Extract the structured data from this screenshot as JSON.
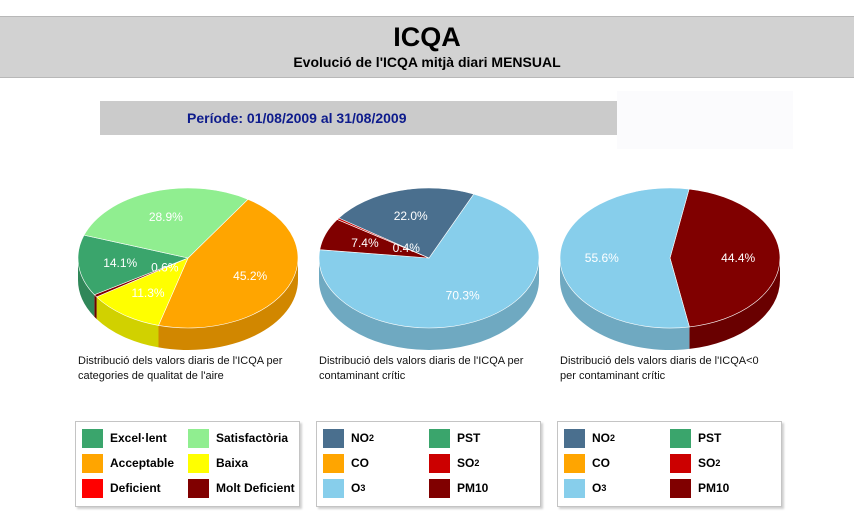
{
  "header": {
    "title": "ICQA",
    "subtitle": "Evolució de l'ICQA mitjà diari MENSUAL"
  },
  "period": "Període: 01/08/2009 al 31/08/2009",
  "colors": {
    "excel_lent": "#3aa56c",
    "satisfactoria": "#90ee90",
    "acceptable": "#ffa500",
    "baixa": "#ffff00",
    "deficient": "#ff0000",
    "molt_deficient": "#800000",
    "no2": "#4a6f8e",
    "pst": "#3aa56c",
    "co": "#ffa500",
    "so2": "#cc0000",
    "o3": "#87ceeb",
    "pm10": "#800000"
  },
  "chart_data": [
    {
      "type": "pie",
      "caption": "Distribució dels valors diaris de l'ICQA per categories de qualitat de l'aire",
      "slices": [
        {
          "label": "Acceptable",
          "value": 45.2,
          "text": "45.2%",
          "color": "#ffa500"
        },
        {
          "label": "Baixa",
          "value": 11.3,
          "text": "11.3%",
          "color": "#ffff00"
        },
        {
          "label": "Molt Deficient",
          "value": 0.6,
          "text": "0.6%",
          "color": "#800000"
        },
        {
          "label": "Excel·lent",
          "value": 14.1,
          "text": "14.1%",
          "color": "#3aa56c"
        },
        {
          "label": "Satisfactòria",
          "value": 28.9,
          "text": "28.9%",
          "color": "#90ee90"
        }
      ],
      "legend": [
        {
          "label": "Excel·lent",
          "sub": "",
          "color": "#3aa56c"
        },
        {
          "label": "Satisfactòria",
          "sub": "",
          "color": "#90ee90"
        },
        {
          "label": "Acceptable",
          "sub": "",
          "color": "#ffa500"
        },
        {
          "label": "Baixa",
          "sub": "",
          "color": "#ffff00"
        },
        {
          "label": "Deficient",
          "sub": "",
          "color": "#ff0000"
        },
        {
          "label": "Molt Deficient",
          "sub": "",
          "color": "#800000"
        }
      ]
    },
    {
      "type": "pie",
      "caption": "Distribució dels valors diaris de l'ICQA per contaminant crític",
      "slices": [
        {
          "label": "O3",
          "value": 70.3,
          "text": "70.3%",
          "color": "#87ceeb"
        },
        {
          "label": "PM10",
          "value": 7.4,
          "text": "7.4%",
          "color": "#800000"
        },
        {
          "label": "SO2",
          "value": 0.4,
          "text": "0.4%",
          "color": "#cc0000"
        },
        {
          "label": "NO2",
          "value": 22.0,
          "text": "22.0%",
          "color": "#4a6f8e"
        }
      ],
      "legend": [
        {
          "label": "NO",
          "sub": "2",
          "color": "#4a6f8e"
        },
        {
          "label": "PST",
          "sub": "",
          "color": "#3aa56c"
        },
        {
          "label": "CO",
          "sub": "",
          "color": "#ffa500"
        },
        {
          "label": "SO",
          "sub": "2",
          "color": "#cc0000"
        },
        {
          "label": "O",
          "sub": "3",
          "color": "#87ceeb"
        },
        {
          "label": "PM10",
          "sub": "",
          "color": "#800000"
        }
      ]
    },
    {
      "type": "pie",
      "caption": "Distribució dels valors diaris de l'ICQA<0 per contaminant crític",
      "slices": [
        {
          "label": "PM10",
          "value": 44.4,
          "text": "44.4%",
          "color": "#800000"
        },
        {
          "label": "O3",
          "value": 55.6,
          "text": "55.6%",
          "color": "#87ceeb"
        }
      ],
      "legend": [
        {
          "label": "NO",
          "sub": "2",
          "color": "#4a6f8e"
        },
        {
          "label": "PST",
          "sub": "",
          "color": "#3aa56c"
        },
        {
          "label": "CO",
          "sub": "",
          "color": "#ffa500"
        },
        {
          "label": "SO",
          "sub": "2",
          "color": "#cc0000"
        },
        {
          "label": "O",
          "sub": "3",
          "color": "#87ceeb"
        },
        {
          "label": "PM10",
          "sub": "",
          "color": "#800000"
        }
      ]
    }
  ]
}
